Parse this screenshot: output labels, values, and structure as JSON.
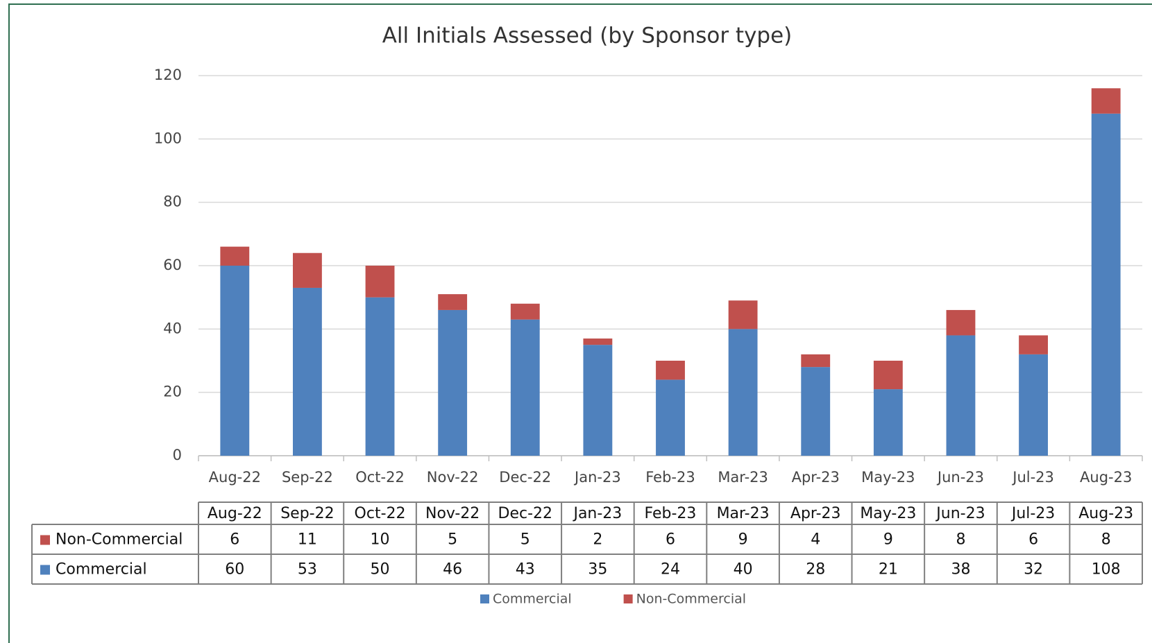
{
  "chart_data": {
    "type": "stacked-bar",
    "title": "All Initials Assessed (by Sponsor type)",
    "categories": [
      "Aug-22",
      "Sep-22",
      "Oct-22",
      "Nov-22",
      "Dec-22",
      "Jan-23",
      "Feb-23",
      "Mar-23",
      "Apr-23",
      "May-23",
      "Jun-23",
      "Jul-23",
      "Aug-23"
    ],
    "series": [
      {
        "name": "Commercial",
        "color": "#4f81bd",
        "values": [
          60,
          53,
          50,
          46,
          43,
          35,
          24,
          40,
          28,
          21,
          38,
          32,
          108
        ]
      },
      {
        "name": "Non-Commercial",
        "color": "#c0504d",
        "values": [
          6,
          11,
          10,
          5,
          5,
          2,
          6,
          9,
          4,
          9,
          8,
          6,
          8
        ]
      }
    ],
    "ylim": [
      0,
      120
    ],
    "yticks": [
      0,
      20,
      40,
      60,
      80,
      100,
      120
    ],
    "grid": true,
    "legend": "bottom",
    "data_table": true
  }
}
